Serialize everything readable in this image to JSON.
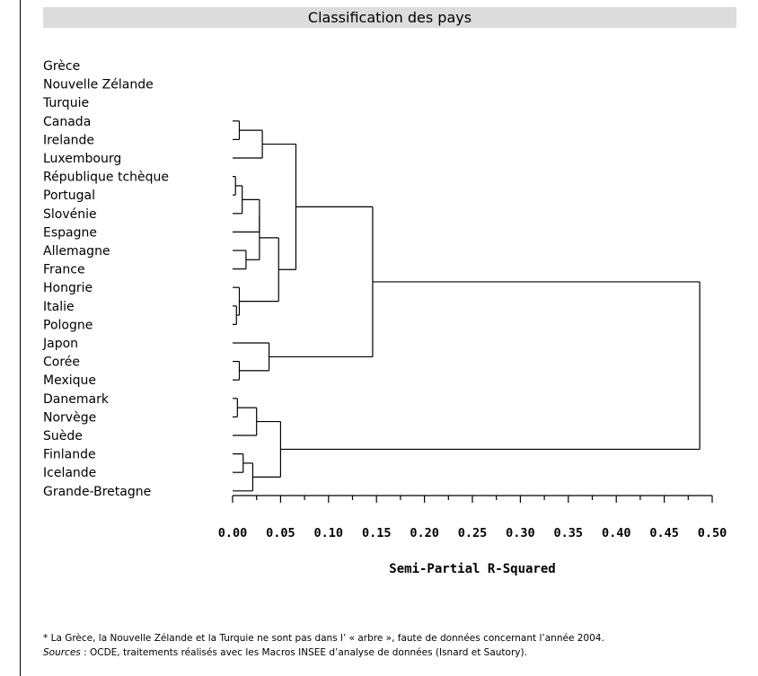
{
  "chart_data": {
    "type": "dendrogram",
    "title": "Classification des pays",
    "xlabel": "Semi-Partial R-Squared",
    "xlim": [
      0,
      0.5
    ],
    "xticks": [
      "0.00",
      "0.05",
      "0.10",
      "0.15",
      "0.20",
      "0.25",
      "0.30",
      "0.35",
      "0.40",
      "0.45",
      "0.50"
    ],
    "labels": [
      "Grèce",
      "Nouvelle Zélande",
      "Turquie",
      "Canada",
      "Irelande",
      "Luxembourg",
      "République tchèque",
      "Portugal",
      "Slovénie",
      "Espagne",
      "Allemagne",
      "France",
      "Hongrie",
      "Italie",
      "Pologne",
      "Japon",
      "Corée",
      "Mexique",
      "Danemark",
      "Norvège",
      "Suède",
      "Finlande",
      "Icelande",
      "Grande-Bretagne"
    ],
    "merges": [
      {
        "id": "m1",
        "a": "Canada",
        "b": "Irelande",
        "height": 0.007
      },
      {
        "id": "m2",
        "a": "m1",
        "b": "Luxembourg",
        "height": 0.031
      },
      {
        "id": "m3",
        "a": "République tchèque",
        "b": "Portugal",
        "height": 0.003
      },
      {
        "id": "m4",
        "a": "m3",
        "b": "Slovénie",
        "height": 0.01
      },
      {
        "id": "m5",
        "a": "Allemagne",
        "b": "France",
        "height": 0.014
      },
      {
        "id": "m6",
        "a": "m4",
        "b": "Espagne",
        "height": 0.028
      },
      {
        "id": "m7",
        "a": "m6",
        "b": "m5",
        "height": 0.028
      },
      {
        "id": "m8",
        "a": "Italie",
        "b": "Pologne",
        "height": 0.004
      },
      {
        "id": "m9",
        "a": "Hongrie",
        "b": "m8",
        "height": 0.007
      },
      {
        "id": "m10",
        "a": "m7",
        "b": "m9",
        "height": 0.048
      },
      {
        "id": "m11",
        "a": "m2",
        "b": "m10",
        "height": 0.066
      },
      {
        "id": "m12",
        "a": "Corée",
        "b": "Mexique",
        "height": 0.007
      },
      {
        "id": "m13",
        "a": "Japon",
        "b": "m12",
        "height": 0.038
      },
      {
        "id": "m14",
        "a": "m11",
        "b": "m13",
        "height": 0.146
      },
      {
        "id": "m15",
        "a": "Danemark",
        "b": "Norvège",
        "height": 0.005
      },
      {
        "id": "m16",
        "a": "m15",
        "b": "Suède",
        "height": 0.025
      },
      {
        "id": "m17",
        "a": "Finlande",
        "b": "Icelande",
        "height": 0.011
      },
      {
        "id": "m18",
        "a": "m17",
        "b": "Grande-Bretagne",
        "height": 0.021
      },
      {
        "id": "m19",
        "a": "m16",
        "b": "m18",
        "height": 0.05
      },
      {
        "id": "m20",
        "a": "m14",
        "b": "m19",
        "height": 0.487
      }
    ]
  },
  "footnote": {
    "line1": "* La Grèce, la Nouvelle Zélande et la Turquie ne sont pas dans l’ « arbre », faute de données concernant l’année 2004.",
    "line2_lead": "Sources",
    "line2_rest": " : OCDE, traitements réalisés avec les Macros INSEE d’analyse de données (Isnard et Sautory)."
  }
}
